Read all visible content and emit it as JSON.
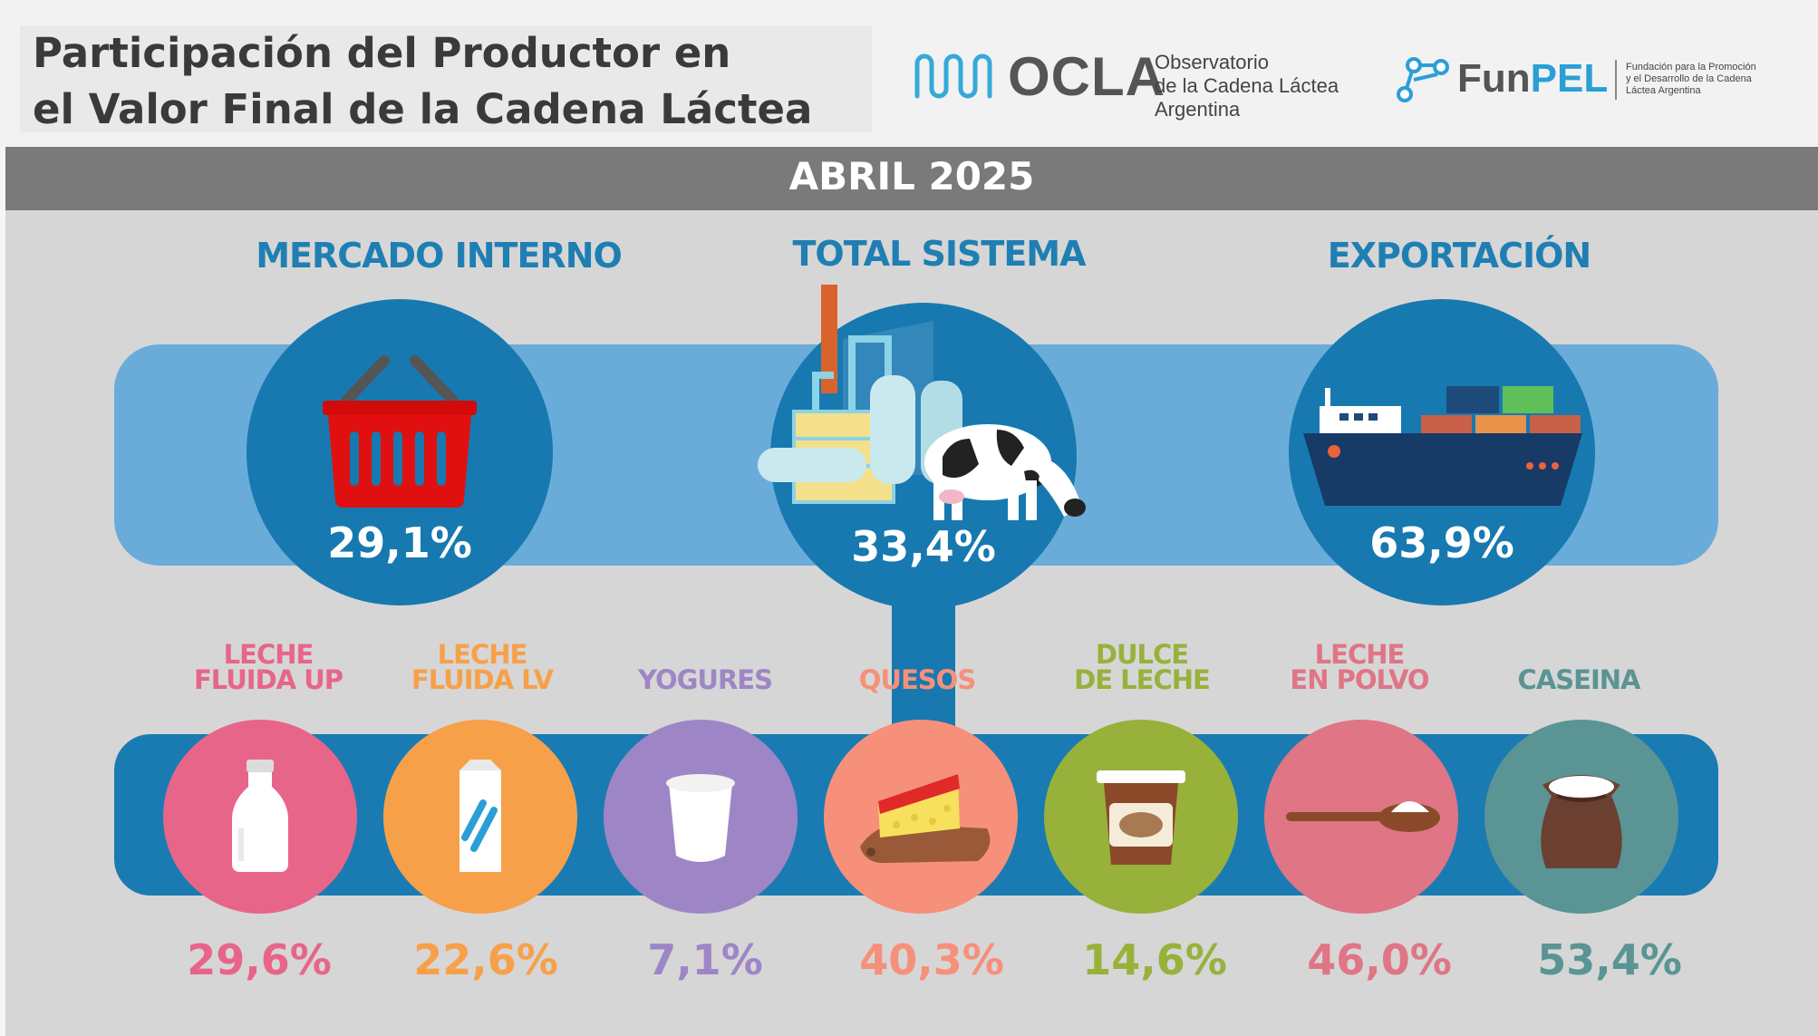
{
  "header": {
    "title_line1": "Participación del Productor en",
    "title_line2": "el Valor Final de la Cadena Láctea"
  },
  "logos": {
    "ocla": {
      "word": "OCLA",
      "sub1": "Observatorio",
      "sub2": "de la Cadena Láctea",
      "sub3": "Argentina"
    },
    "funpel": {
      "word_a": "Fun",
      "word_b": "PEL",
      "sub1": "Fundación para la Promoción",
      "sub2": "y el Desarrollo de la Cadena",
      "sub3": "Láctea Argentina"
    }
  },
  "date_label": "ABRIL 2025",
  "sections": [
    {
      "title": "MERCADO INTERNO",
      "pct": "29,1%",
      "icon": "basket-icon"
    },
    {
      "title": "TOTAL SISTEMA",
      "pct": "33,4%",
      "icon": "dairy-plant-cow-icon"
    },
    {
      "title": "EXPORTACIÓN",
      "pct": "63,9%",
      "icon": "cargo-ship-icon"
    }
  ],
  "categories": [
    {
      "line1": "LECHE",
      "line2": "FLUIDA UP",
      "pct": "29,6%",
      "color": "#e8658a",
      "icon": "milk-bottle-icon"
    },
    {
      "line1": "LECHE",
      "line2": "FLUIDA LV",
      "pct": "22,6%",
      "color": "#f7a04a",
      "icon": "milk-carton-icon"
    },
    {
      "line1": "",
      "line2": "YOGURES",
      "pct": "7,1%",
      "color": "#9e86c6",
      "icon": "yogurt-cup-icon"
    },
    {
      "line1": "",
      "line2": "QUESOS",
      "pct": "40,3%",
      "color": "#f6907a",
      "icon": "cheese-icon"
    },
    {
      "line1": "DULCE",
      "line2": "DE LECHE",
      "pct": "14,6%",
      "color": "#98b13b",
      "icon": "dulce-jar-icon"
    },
    {
      "line1": "LECHE",
      "line2": "EN POLVO",
      "pct": "46,0%",
      "color": "#df7585",
      "icon": "powder-spoon-icon"
    },
    {
      "line1": "",
      "line2": "CASEINA",
      "pct": "53,4%",
      "color": "#5a9494",
      "icon": "sack-icon"
    }
  ],
  "colors": {
    "title_blue": "#1f7fb3",
    "circle_blue": "#1779b0",
    "band_light": "#6aacd9",
    "band_dark": "#1a7bb3"
  }
}
